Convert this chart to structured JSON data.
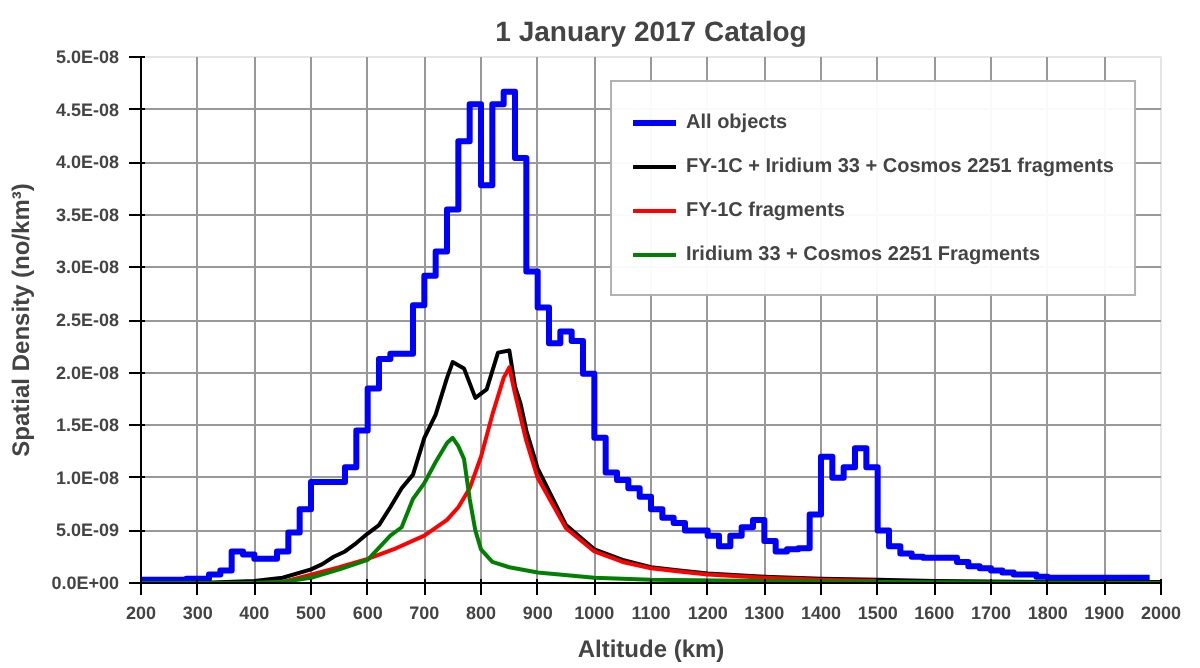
{
  "chart_data": {
    "type": "line",
    "title": "1 January 2017 Catalog",
    "xlabel": "Altitude (km)",
    "ylabel": "Spatial Density (no/km³)",
    "xlim": [
      200,
      2000
    ],
    "xticks": [
      200,
      300,
      400,
      500,
      600,
      700,
      800,
      900,
      1000,
      1100,
      1200,
      1300,
      1400,
      1500,
      1600,
      1700,
      1800,
      1900,
      2000
    ],
    "ylim": [
      0,
      5e-08
    ],
    "yticks": [
      {
        "value": 0,
        "label": "0.0E+00"
      },
      {
        "value": 5e-09,
        "label": "5.0E-09"
      },
      {
        "value": 1e-08,
        "label": "1.0E-08"
      },
      {
        "value": 1.5e-08,
        "label": "1.5E-08"
      },
      {
        "value": 2e-08,
        "label": "2.0E-08"
      },
      {
        "value": 2.5e-08,
        "label": "2.5E-08"
      },
      {
        "value": 3e-08,
        "label": "3.0E-08"
      },
      {
        "value": 3.5e-08,
        "label": "3.5E-08"
      },
      {
        "value": 4e-08,
        "label": "4.0E-08"
      },
      {
        "value": 4.5e-08,
        "label": "4.5E-08"
      },
      {
        "value": 5e-08,
        "label": "5.0E-08"
      }
    ],
    "grid": true,
    "legend": "top right",
    "marker": "none",
    "line_style": "solid",
    "series": [
      {
        "name": "All objects",
        "type": "step",
        "color": "#0000ff",
        "x": [
          200,
          220,
          240,
          260,
          280,
          300,
          320,
          340,
          360,
          380,
          400,
          420,
          440,
          460,
          480,
          500,
          520,
          540,
          560,
          580,
          600,
          620,
          640,
          660,
          680,
          700,
          720,
          740,
          760,
          780,
          800,
          820,
          840,
          860,
          880,
          900,
          920,
          940,
          960,
          980,
          1000,
          1020,
          1040,
          1060,
          1080,
          1100,
          1120,
          1140,
          1160,
          1180,
          1200,
          1220,
          1240,
          1260,
          1280,
          1300,
          1320,
          1340,
          1360,
          1380,
          1400,
          1420,
          1440,
          1460,
          1480,
          1500,
          1520,
          1540,
          1560,
          1580,
          1600,
          1620,
          1640,
          1660,
          1680,
          1700,
          1720,
          1740,
          1760,
          1780,
          1800,
          1820,
          1840,
          1860,
          1880,
          1900,
          1920,
          1940,
          1960,
          1980
        ],
        "values": [
          3e-10,
          3e-10,
          3e-10,
          3e-10,
          4e-10,
          4e-10,
          8e-10,
          1.2e-09,
          3e-09,
          2.7e-09,
          2.3e-09,
          2.3e-09,
          3e-09,
          4.8e-09,
          7e-09,
          9.6e-09,
          9.6e-09,
          9.6e-09,
          1.1e-08,
          1.45e-08,
          1.85e-08,
          2.13e-08,
          2.18e-08,
          2.18e-08,
          2.64e-08,
          2.92e-08,
          3.15e-08,
          3.55e-08,
          4.2e-08,
          4.55e-08,
          3.78e-08,
          4.55e-08,
          4.67e-08,
          4.04e-08,
          2.96e-08,
          2.62e-08,
          2.28e-08,
          2.39e-08,
          2.3e-08,
          1.99e-08,
          1.38e-08,
          1.05e-08,
          9.8e-09,
          9e-09,
          8.2e-09,
          7e-09,
          6.2e-09,
          5.7e-09,
          5e-09,
          5e-09,
          4.5e-09,
          3.5e-09,
          4.5e-09,
          5.3e-09,
          6e-09,
          4e-09,
          3e-09,
          3.2e-09,
          3.3e-09,
          6.5e-09,
          1.2e-08,
          1e-08,
          1.1e-08,
          1.28e-08,
          1.1e-08,
          5e-09,
          3.5e-09,
          2.8e-09,
          2.5e-09,
          2.4e-09,
          2.4e-09,
          2.4e-09,
          2e-09,
          1.6e-09,
          1.4e-09,
          1.2e-09,
          1e-09,
          8e-10,
          8e-10,
          6e-10,
          5e-10,
          5e-10,
          5e-10,
          5e-10,
          5e-10,
          5e-10,
          5e-10,
          5e-10,
          5e-10,
          5e-10
        ]
      },
      {
        "name": "FY-1C + Iridium 33 + Cosmos 2251 fragments",
        "color": "#000000",
        "x": [
          200,
          300,
          400,
          450,
          500,
          520,
          540,
          560,
          580,
          600,
          620,
          640,
          660,
          680,
          700,
          720,
          740,
          750,
          770,
          790,
          810,
          830,
          850,
          860,
          870,
          880,
          900,
          950,
          1000,
          1050,
          1100,
          1150,
          1200,
          1300,
          1400,
          1500,
          1600,
          1800,
          2000
        ],
        "values": [
          0,
          0,
          2e-10,
          5e-10,
          1.3e-09,
          1.8e-09,
          2.5e-09,
          3e-09,
          3.8e-09,
          4.7e-09,
          5.5e-09,
          7.2e-09,
          9e-09,
          1.03e-08,
          1.38e-08,
          1.6e-08,
          1.95e-08,
          2.1e-08,
          2.04e-08,
          1.76e-08,
          1.84e-08,
          2.19e-08,
          2.21e-08,
          1.87e-08,
          1.7e-08,
          1.45e-08,
          1.09e-08,
          5.5e-09,
          3.2e-09,
          2.2e-09,
          1.5e-09,
          1.2e-09,
          9e-10,
          6e-10,
          4e-10,
          3e-10,
          2e-10,
          1e-10,
          1e-10
        ]
      },
      {
        "name": "FY-1C fragments",
        "color": "#ff0000",
        "x": [
          400,
          450,
          500,
          550,
          600,
          650,
          700,
          740,
          760,
          780,
          800,
          820,
          840,
          850,
          860,
          880,
          900,
          950,
          1000,
          1050,
          1100,
          1150,
          1200,
          1300,
          1400,
          1500
        ],
        "values": [
          0,
          1e-10,
          8e-10,
          1.5e-09,
          2.3e-09,
          3.3e-09,
          4.5e-09,
          6e-09,
          7.2e-09,
          9e-09,
          1.2e-08,
          1.6e-08,
          1.95e-08,
          2.05e-08,
          1.8e-08,
          1.35e-08,
          1e-08,
          5.2e-09,
          3e-09,
          2e-09,
          1.4e-09,
          1.1e-09,
          8e-10,
          5e-10,
          3e-10,
          2e-10
        ]
      },
      {
        "name": "Iridium 33 + Cosmos 2251 Fragments",
        "color": "#008000",
        "x": [
          200,
          300,
          400,
          450,
          500,
          550,
          600,
          640,
          660,
          680,
          700,
          720,
          740,
          750,
          760,
          770,
          780,
          790,
          800,
          820,
          850,
          900,
          1000,
          1100,
          1300,
          1500,
          2000
        ],
        "values": [
          0,
          0,
          0,
          1e-10,
          5e-10,
          1.3e-09,
          2.2e-09,
          4.5e-09,
          5.3e-09,
          8e-09,
          9.5e-09,
          1.15e-08,
          1.33e-08,
          1.38e-08,
          1.3e-08,
          1.18e-08,
          8e-09,
          5e-09,
          3.2e-09,
          2e-09,
          1.5e-09,
          1e-09,
          5e-10,
          3e-10,
          2e-10,
          1e-10,
          0
        ]
      }
    ]
  }
}
